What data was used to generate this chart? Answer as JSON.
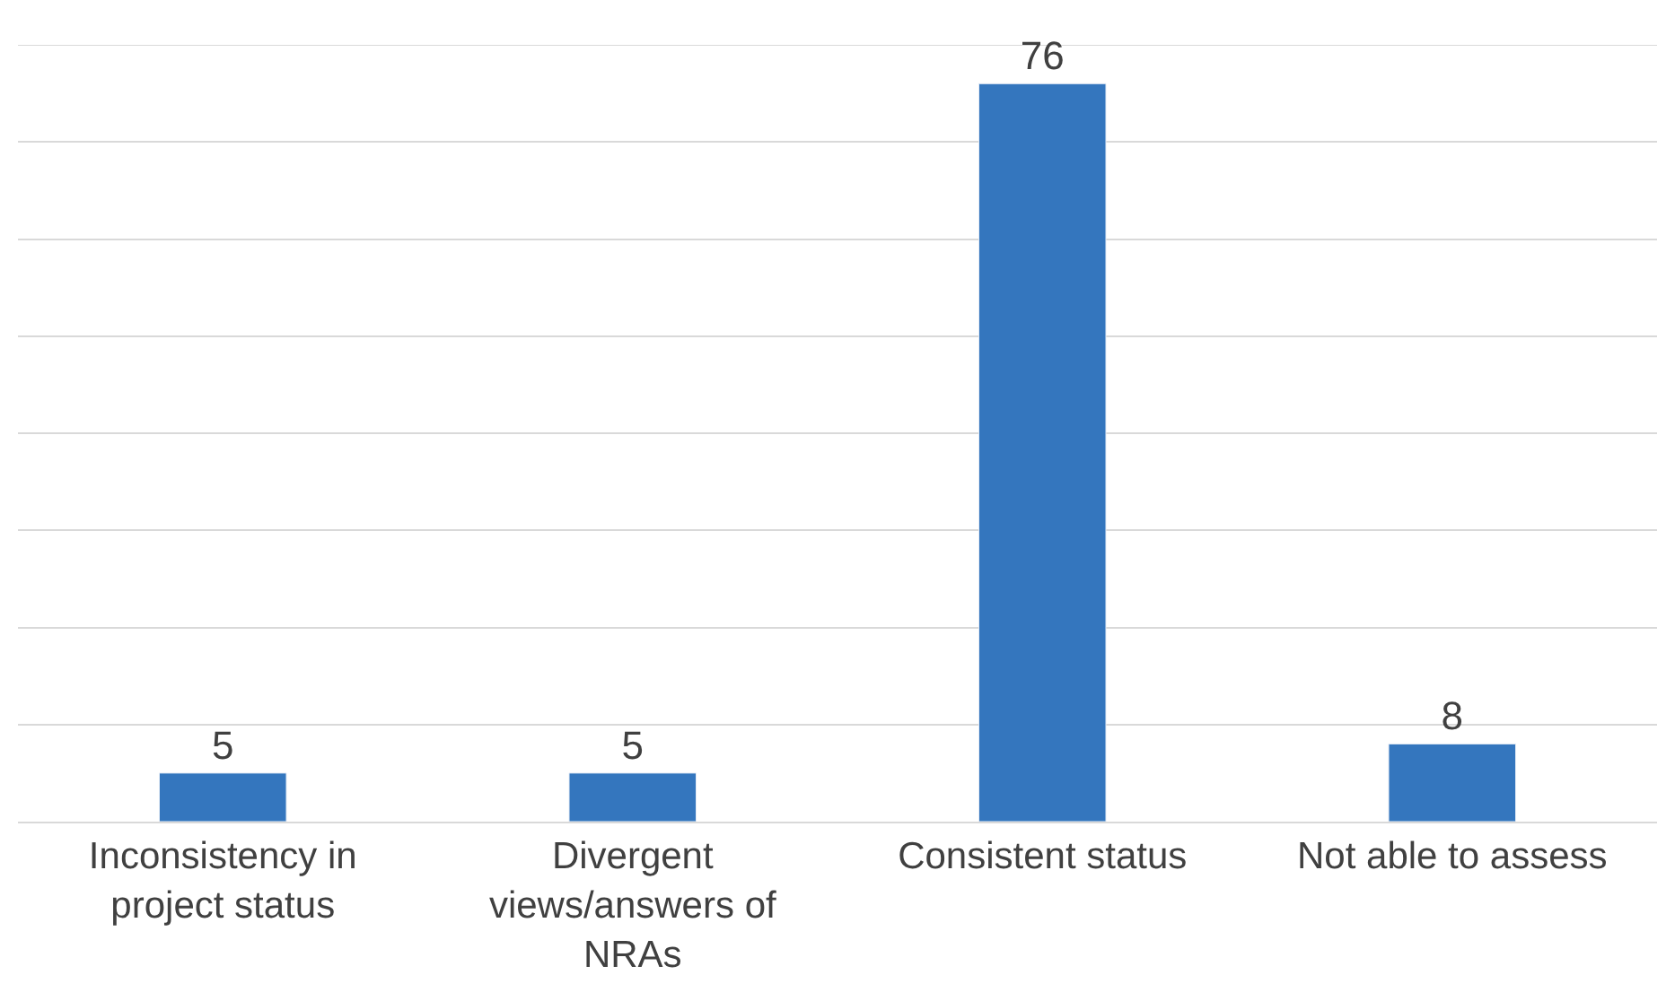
{
  "chart_data": {
    "type": "bar",
    "categories": [
      "Inconsistency in project status",
      "Divergent views/answers of NRAs",
      "Consistent status",
      "Not able to assess"
    ],
    "values": [
      5,
      5,
      76,
      8
    ],
    "color": "#3476be",
    "ylim": [
      0,
      80
    ],
    "yticks": [
      {
        "value": 0,
        "label": null
      },
      {
        "value": 10,
        "label": null
      },
      {
        "value": 20,
        "label": null
      },
      {
        "value": 30,
        "label": null
      },
      {
        "value": 40,
        "label": null
      },
      {
        "value": 50,
        "label": null
      },
      {
        "value": 60,
        "label": null
      },
      {
        "value": 70,
        "label": null
      },
      {
        "value": 80,
        "label": null
      }
    ],
    "grid": "y",
    "data_labels": true,
    "tick_labels": "x"
  }
}
